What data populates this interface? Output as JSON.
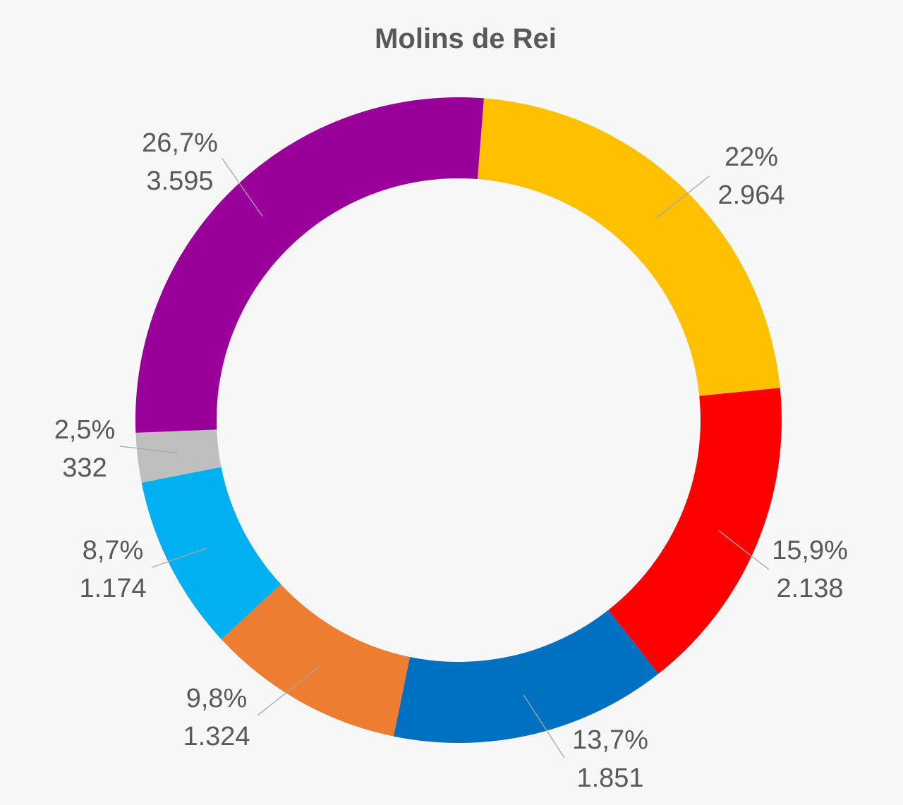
{
  "chart_data": {
    "type": "pie",
    "variant": "donut",
    "title": "Molins de Rei",
    "slices": [
      {
        "value": 2964,
        "value_label": "2.964",
        "percent_label": "22%",
        "color": "#FFC000"
      },
      {
        "value": 2138,
        "value_label": "2.138",
        "percent_label": "15,9%",
        "color": "#FF0000"
      },
      {
        "value": 1851,
        "value_label": "1.851",
        "percent_label": "13,7%",
        "color": "#0070C0"
      },
      {
        "value": 1324,
        "value_label": "1.324",
        "percent_label": "9,8%",
        "color": "#ED7D31"
      },
      {
        "value": 1174,
        "value_label": "1.174",
        "percent_label": "8,7%",
        "color": "#00B0F0"
      },
      {
        "value": 332,
        "value_label": "332",
        "percent_label": "2,5%",
        "color": "#BFBFBF"
      },
      {
        "value": 3595,
        "value_label": "3.595",
        "percent_label": "26,7%",
        "color": "#990099"
      }
    ],
    "legend": "none"
  }
}
